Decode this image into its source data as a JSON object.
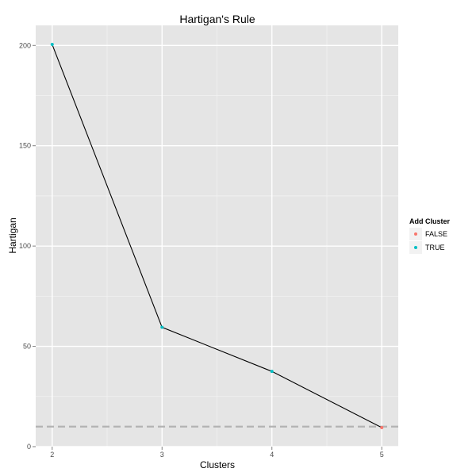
{
  "chart_data": {
    "type": "line",
    "title": "Hartigan's Rule",
    "xlabel": "Clusters",
    "ylabel": "Hartigan",
    "x": [
      2,
      3,
      4,
      5
    ],
    "y": [
      200.5,
      59.5,
      37.5,
      9.5
    ],
    "add_cluster": [
      "TRUE",
      "TRUE",
      "TRUE",
      "FALSE"
    ],
    "xlim": [
      1.85,
      5.15
    ],
    "ylim": [
      0,
      210
    ],
    "x_ticks": [
      2,
      3,
      4,
      5
    ],
    "y_ticks": [
      0,
      50,
      100,
      150,
      200
    ],
    "threshold": 10,
    "grid": true,
    "legend": {
      "title": "Add Cluster",
      "placement": "right",
      "entries": [
        {
          "label": "FALSE",
          "color": "#f8766d"
        },
        {
          "label": "TRUE",
          "color": "#00bfc4"
        }
      ]
    },
    "colors": {
      "panel": "#e5e5e5",
      "grid_major": "#ffffff",
      "grid_minor": "#f2f2f2",
      "line": "#000000",
      "threshold": "#b3b3b3"
    }
  }
}
